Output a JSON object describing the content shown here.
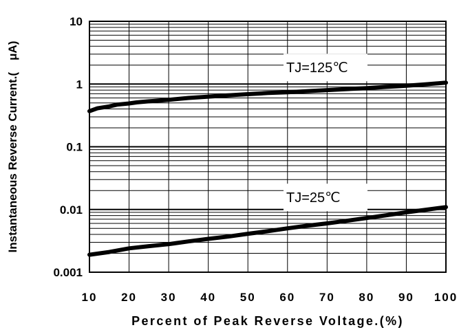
{
  "chart_data": {
    "type": "line",
    "xlabel": "Percent of Peak Reverse Voltage.(%)",
    "ylabel": "Instantaneous Reverse Current.(　μA)",
    "x_scale": "linear",
    "y_scale": "log",
    "xlim": [
      10,
      100
    ],
    "ylim": [
      0.001,
      10
    ],
    "x_ticks": [
      "10",
      "20",
      "30",
      "40",
      "50",
      "60",
      "70",
      "80",
      "90",
      "100"
    ],
    "y_ticks": [
      "0.001",
      "0.01",
      "0.1",
      "1",
      "10"
    ],
    "grid": true,
    "series": [
      {
        "name": "TJ=125℃",
        "color": "#000000",
        "x": [
          10,
          12,
          15,
          17,
          20,
          22,
          25,
          30,
          35,
          40,
          45,
          50,
          55,
          60,
          65,
          70,
          75,
          80,
          85,
          90,
          95,
          100
        ],
        "y": [
          0.37,
          0.41,
          0.44,
          0.47,
          0.49,
          0.51,
          0.53,
          0.56,
          0.6,
          0.63,
          0.66,
          0.69,
          0.72,
          0.74,
          0.77,
          0.8,
          0.83,
          0.86,
          0.9,
          0.94,
          0.99,
          1.05
        ]
      },
      {
        "name": "TJ=25℃",
        "color": "#000000",
        "x": [
          10,
          15,
          20,
          25,
          30,
          35,
          40,
          45,
          50,
          55,
          60,
          65,
          70,
          75,
          80,
          85,
          90,
          95,
          100
        ],
        "y": [
          0.0019,
          0.0021,
          0.0024,
          0.0026,
          0.0028,
          0.0031,
          0.0034,
          0.0037,
          0.0041,
          0.0045,
          0.005,
          0.0055,
          0.006,
          0.0066,
          0.0073,
          0.0081,
          0.009,
          0.0099,
          0.0109
        ]
      }
    ]
  }
}
